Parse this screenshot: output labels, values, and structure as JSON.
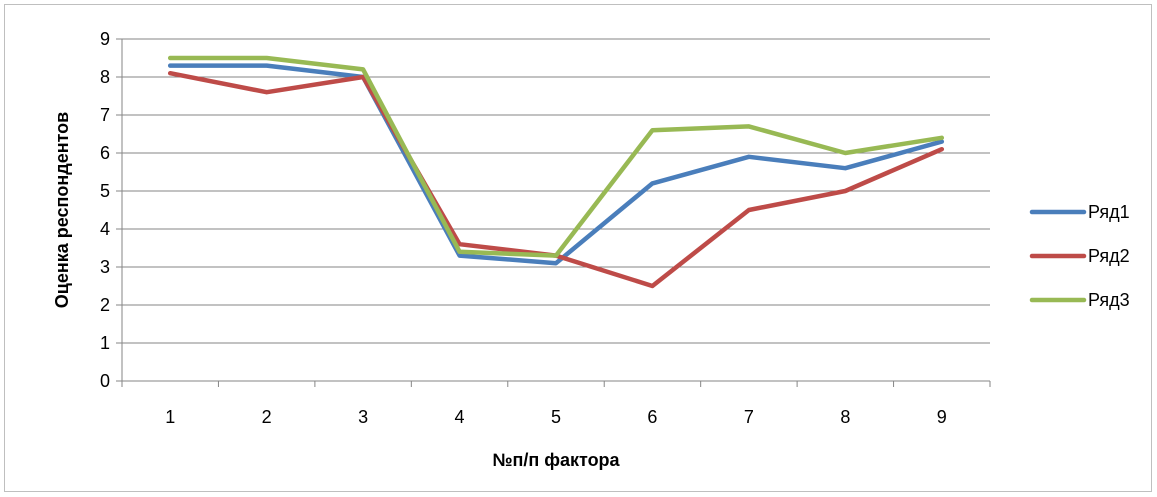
{
  "chart_data": {
    "type": "line",
    "title": "",
    "xlabel": "№п/п фактора",
    "ylabel": "Оценка респондентов",
    "categories": [
      "1",
      "2",
      "3",
      "4",
      "5",
      "6",
      "7",
      "8",
      "9"
    ],
    "y_ticks": [
      "0",
      "1",
      "2",
      "3",
      "4",
      "5",
      "6",
      "7",
      "8",
      "9"
    ],
    "ylim": [
      0,
      9
    ],
    "grid": "horizontal",
    "legend_position": "right",
    "series": [
      {
        "name": "Ряд1",
        "color": "#4a7ebb",
        "values": [
          8.3,
          8.3,
          8.0,
          3.3,
          3.1,
          5.2,
          5.9,
          5.6,
          6.3
        ]
      },
      {
        "name": "Ряд2",
        "color": "#be4b48",
        "values": [
          8.1,
          7.6,
          8.0,
          3.6,
          3.3,
          2.5,
          4.5,
          5.0,
          6.1
        ]
      },
      {
        "name": "Ряд3",
        "color": "#98b954",
        "values": [
          8.5,
          8.5,
          8.2,
          3.4,
          3.3,
          6.6,
          6.7,
          6.0,
          6.4
        ]
      }
    ]
  }
}
